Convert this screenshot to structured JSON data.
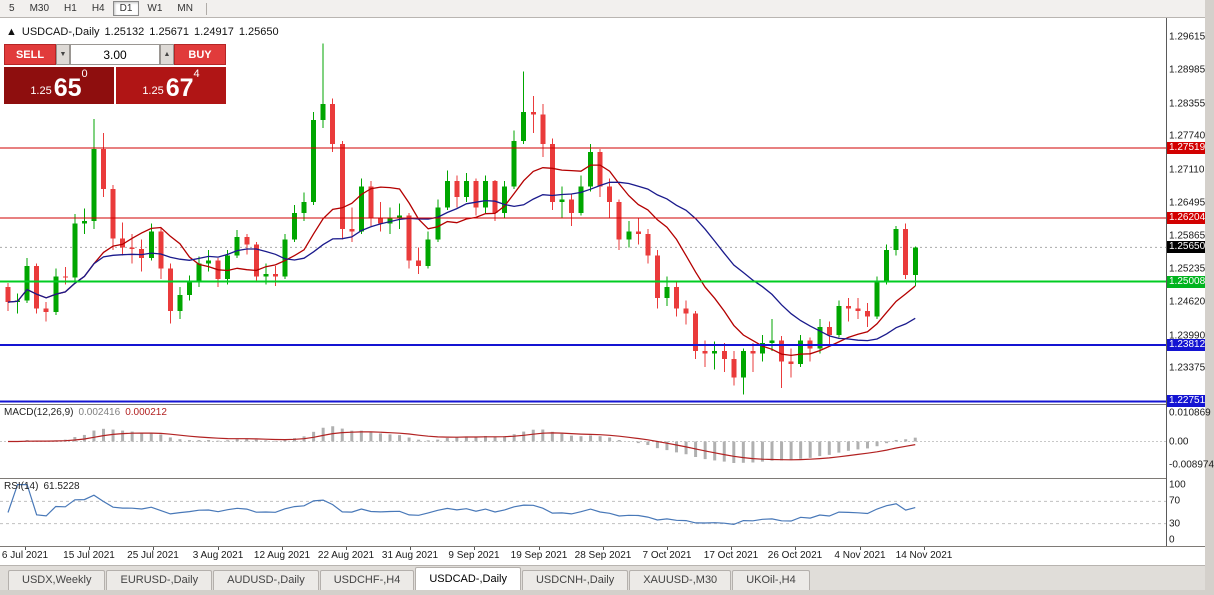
{
  "toolbar": {
    "timeframes": [
      "5",
      "M30",
      "H1",
      "H4",
      "D1",
      "W1",
      "MN"
    ],
    "active_timeframe": "D1"
  },
  "icons": {
    "collapse": "▲",
    "volume_down": "▼",
    "volume_up": "▲"
  },
  "chart_header": {
    "symbol": "USDCAD-,Daily",
    "open": "1.25132",
    "high": "1.25671",
    "low": "1.24917",
    "close": "1.25650"
  },
  "trade_panel": {
    "sell_label": "SELL",
    "buy_label": "BUY",
    "volume": "3.00",
    "sell_price_prefix": "1.25",
    "sell_price_big": "65",
    "sell_price_sup": "0",
    "buy_price_prefix": "1.25",
    "buy_price_big": "67",
    "buy_price_sup": "4"
  },
  "price_axis": {
    "ticks": [
      {
        "label": "1.29615",
        "value": 1.29615
      },
      {
        "label": "1.28985",
        "value": 1.28985
      },
      {
        "label": "1.28355",
        "value": 1.28355
      },
      {
        "label": "1.27740",
        "value": 1.2774
      },
      {
        "label": "1.27110",
        "value": 1.2711
      },
      {
        "label": "1.26495",
        "value": 1.26495
      },
      {
        "label": "1.25865",
        "value": 1.25865
      },
      {
        "label": "1.25235",
        "value": 1.25235
      },
      {
        "label": "1.24620",
        "value": 1.2462
      },
      {
        "label": "1.23990",
        "value": 1.2399
      },
      {
        "label": "1.23375",
        "value": 1.23375
      }
    ],
    "badges": [
      {
        "label": "1.27519",
        "value": 1.27519,
        "color": "#d20000"
      },
      {
        "label": "1.26204",
        "value": 1.26204,
        "color": "#d20000"
      },
      {
        "label": "1.25650",
        "value": 1.2565,
        "color": "#000000"
      },
      {
        "label": "1.25008",
        "value": 1.25008,
        "color": "#00b41e"
      },
      {
        "label": "1.23812",
        "value": 1.23812,
        "color": "#1414d2"
      },
      {
        "label": "1.22751",
        "value": 1.22751,
        "color": "#1414d2"
      }
    ]
  },
  "chart_data": {
    "type": "candlestick",
    "title": "USDCAD-,Daily",
    "price_range": {
      "top": 1.2997,
      "bottom": 1.227
    },
    "current_price": 1.2565,
    "ma_fast_period": 10,
    "ma_slow_period": 20,
    "colors": {
      "up": "#00a600",
      "down": "#ea3b3b",
      "ma_fast": "#b40000",
      "ma_slow": "#1a1a8c"
    },
    "hlines": [
      {
        "value": 1.27519,
        "color": "#d20000",
        "width": 1
      },
      {
        "value": 1.26204,
        "color": "#d20000",
        "width": 1
      },
      {
        "value": 1.25008,
        "color": "#00cc22",
        "width": 2
      },
      {
        "value": 1.23812,
        "color": "#1414d2",
        "width": 2
      },
      {
        "value": 1.22751,
        "color": "#1414d2",
        "width": 2
      }
    ],
    "x_labels": [
      "6 Jul 2021",
      "15 Jul 2021",
      "25 Jul 2021",
      "3 Aug 2021",
      "12 Aug 2021",
      "22 Aug 2021",
      "31 Aug 2021",
      "9 Sep 2021",
      "19 Sep 2021",
      "28 Sep 2021",
      "7 Oct 2021",
      "17 Oct 2021",
      "26 Oct 2021",
      "4 Nov 2021",
      "14 Nov 2021"
    ],
    "candles": [
      [
        1.249,
        1.2498,
        1.2445,
        1.2462
      ],
      [
        1.2462,
        1.2478,
        1.244,
        1.2465
      ],
      [
        1.2465,
        1.2545,
        1.246,
        1.253
      ],
      [
        1.253,
        1.2535,
        1.244,
        1.245
      ],
      [
        1.245,
        1.2462,
        1.2425,
        1.2443
      ],
      [
        1.2443,
        1.2525,
        1.2438,
        1.251
      ],
      [
        1.251,
        1.2528,
        1.2495,
        1.2508
      ],
      [
        1.2508,
        1.2628,
        1.25,
        1.261
      ],
      [
        1.261,
        1.2638,
        1.259,
        1.2615
      ],
      [
        1.2615,
        1.2807,
        1.26,
        1.275
      ],
      [
        1.275,
        1.278,
        1.266,
        1.2675
      ],
      [
        1.2675,
        1.2682,
        1.256,
        1.2582
      ],
      [
        1.2582,
        1.2612,
        1.255,
        1.2565
      ],
      [
        1.2565,
        1.259,
        1.2535,
        1.2562
      ],
      [
        1.2562,
        1.258,
        1.252,
        1.2545
      ],
      [
        1.2545,
        1.261,
        1.254,
        1.2595
      ],
      [
        1.2595,
        1.2602,
        1.2505,
        1.2525
      ],
      [
        1.2525,
        1.2535,
        1.2422,
        1.2445
      ],
      [
        1.2445,
        1.249,
        1.243,
        1.2475
      ],
      [
        1.2475,
        1.2512,
        1.2465,
        1.25
      ],
      [
        1.25,
        1.2548,
        1.249,
        1.2535
      ],
      [
        1.2535,
        1.256,
        1.252,
        1.254
      ],
      [
        1.254,
        1.2545,
        1.249,
        1.2505
      ],
      [
        1.2505,
        1.256,
        1.2495,
        1.255
      ],
      [
        1.255,
        1.2598,
        1.2545,
        1.2585
      ],
      [
        1.2585,
        1.259,
        1.2552,
        1.257
      ],
      [
        1.257,
        1.2575,
        1.25,
        1.251
      ],
      [
        1.251,
        1.2535,
        1.2495,
        1.2515
      ],
      [
        1.2515,
        1.253,
        1.2492,
        1.251
      ],
      [
        1.251,
        1.259,
        1.2505,
        1.258
      ],
      [
        1.258,
        1.2645,
        1.2575,
        1.263
      ],
      [
        1.263,
        1.2668,
        1.2615,
        1.265
      ],
      [
        1.265,
        1.282,
        1.2645,
        1.2805
      ],
      [
        1.2805,
        1.2949,
        1.279,
        1.2835
      ],
      [
        1.2835,
        1.2845,
        1.2745,
        1.276
      ],
      [
        1.276,
        1.2765,
        1.258,
        1.26
      ],
      [
        1.26,
        1.264,
        1.2575,
        1.2595
      ],
      [
        1.2595,
        1.2695,
        1.259,
        1.268
      ],
      [
        1.268,
        1.269,
        1.2605,
        1.262
      ],
      [
        1.262,
        1.265,
        1.2595,
        1.261
      ],
      [
        1.261,
        1.264,
        1.259,
        1.262
      ],
      [
        1.262,
        1.2648,
        1.26,
        1.2625
      ],
      [
        1.2625,
        1.263,
        1.2525,
        1.254
      ],
      [
        1.254,
        1.2565,
        1.2515,
        1.253
      ],
      [
        1.253,
        1.2595,
        1.2525,
        1.258
      ],
      [
        1.258,
        1.2655,
        1.2575,
        1.264
      ],
      [
        1.264,
        1.271,
        1.2635,
        1.269
      ],
      [
        1.269,
        1.27,
        1.264,
        1.266
      ],
      [
        1.266,
        1.2705,
        1.265,
        1.269
      ],
      [
        1.269,
        1.2695,
        1.2625,
        1.264
      ],
      [
        1.264,
        1.27,
        1.263,
        1.269
      ],
      [
        1.269,
        1.2692,
        1.2615,
        1.263
      ],
      [
        1.263,
        1.269,
        1.262,
        1.268
      ],
      [
        1.268,
        1.2785,
        1.2675,
        1.2765
      ],
      [
        1.2765,
        1.2896,
        1.276,
        1.282
      ],
      [
        1.282,
        1.285,
        1.278,
        1.2815
      ],
      [
        1.2815,
        1.2835,
        1.2735,
        1.276
      ],
      [
        1.276,
        1.277,
        1.2635,
        1.265
      ],
      [
        1.265,
        1.268,
        1.262,
        1.2655
      ],
      [
        1.2655,
        1.2665,
        1.2605,
        1.263
      ],
      [
        1.263,
        1.27,
        1.2625,
        1.268
      ],
      [
        1.268,
        1.276,
        1.267,
        1.2745
      ],
      [
        1.2745,
        1.275,
        1.266,
        1.268
      ],
      [
        1.268,
        1.2695,
        1.262,
        1.265
      ],
      [
        1.265,
        1.2655,
        1.256,
        1.258
      ],
      [
        1.258,
        1.2615,
        1.2565,
        1.2595
      ],
      [
        1.2595,
        1.262,
        1.257,
        1.259
      ],
      [
        1.259,
        1.26,
        1.2535,
        1.255
      ],
      [
        1.255,
        1.256,
        1.245,
        1.247
      ],
      [
        1.247,
        1.251,
        1.2455,
        1.249
      ],
      [
        1.249,
        1.25,
        1.2435,
        1.245
      ],
      [
        1.245,
        1.2465,
        1.242,
        1.244
      ],
      [
        1.244,
        1.2445,
        1.2355,
        1.237
      ],
      [
        1.237,
        1.239,
        1.234,
        1.2365
      ],
      [
        1.2365,
        1.2388,
        1.2335,
        1.237
      ],
      [
        1.237,
        1.2385,
        1.233,
        1.2355
      ],
      [
        1.2355,
        1.237,
        1.2305,
        1.232
      ],
      [
        1.232,
        1.2375,
        1.2288,
        1.237
      ],
      [
        1.237,
        1.2385,
        1.233,
        1.2365
      ],
      [
        1.2365,
        1.24,
        1.235,
        1.2385
      ],
      [
        1.2385,
        1.243,
        1.237,
        1.239
      ],
      [
        1.239,
        1.2398,
        1.23,
        1.235
      ],
      [
        1.235,
        1.2375,
        1.232,
        1.2345
      ],
      [
        1.2345,
        1.24,
        1.234,
        1.239
      ],
      [
        1.239,
        1.2395,
        1.235,
        1.2375
      ],
      [
        1.2375,
        1.243,
        1.2365,
        1.2415
      ],
      [
        1.2415,
        1.2425,
        1.238,
        1.24
      ],
      [
        1.24,
        1.2465,
        1.2395,
        1.2455
      ],
      [
        1.2455,
        1.247,
        1.2425,
        1.245
      ],
      [
        1.245,
        1.247,
        1.243,
        1.2445
      ],
      [
        1.2445,
        1.246,
        1.2415,
        1.2435
      ],
      [
        1.2435,
        1.251,
        1.243,
        1.25
      ],
      [
        1.25,
        1.257,
        1.2495,
        1.256
      ],
      [
        1.256,
        1.2605,
        1.255,
        1.26
      ],
      [
        1.26,
        1.261,
        1.2505,
        1.2513
      ],
      [
        1.2513,
        1.2567,
        1.2492,
        1.2565
      ]
    ]
  },
  "macd_panel": {
    "name": "MACD(12,26,9)",
    "value_main": "0.002416",
    "value_signal": "0.000212",
    "params": {
      "fast": 12,
      "slow": 26,
      "signal": 9
    },
    "range": 0.014,
    "axis_labels": [
      {
        "label": "0.010869",
        "value": 0.010869
      },
      {
        "label": "0.00",
        "value": 0
      },
      {
        "label": "-0.008974",
        "value": -0.008974
      }
    ],
    "colors": {
      "histogram": "#b0b0b0",
      "signal": "#b22222"
    }
  },
  "rsi_panel": {
    "name": "RSI(14)",
    "value": "61.5228",
    "period": 14,
    "levels": [
      70,
      30
    ],
    "color": "#4878b8",
    "axis_labels": [
      {
        "label": "100",
        "value": 100
      },
      {
        "label": "70",
        "value": 70
      },
      {
        "label": "30",
        "value": 30
      },
      {
        "label": "0",
        "value": 0
      }
    ]
  },
  "tabs": {
    "items": [
      {
        "label": "USDX,Weekly",
        "active": false
      },
      {
        "label": "EURUSD-,Daily",
        "active": false
      },
      {
        "label": "AUDUSD-,Daily",
        "active": false
      },
      {
        "label": "USDCHF-,H4",
        "active": false
      },
      {
        "label": "USDCAD-,Daily",
        "active": true
      },
      {
        "label": "USDCNH-,Daily",
        "active": false
      },
      {
        "label": "XAUUSD-,M30",
        "active": false
      },
      {
        "label": "UKOil-,H4",
        "active": false
      }
    ]
  }
}
